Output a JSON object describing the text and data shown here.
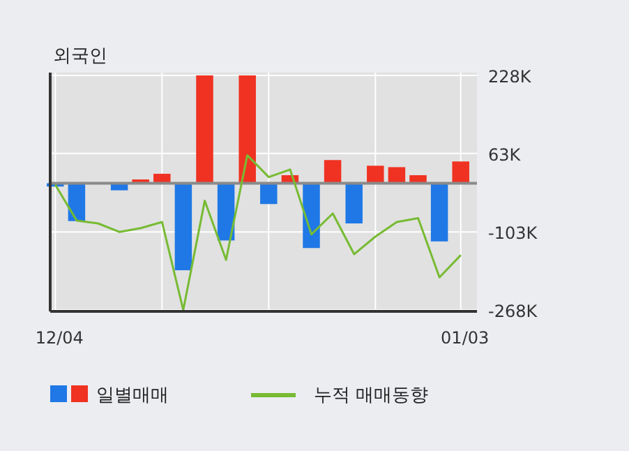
{
  "chart_data": {
    "type": "bar",
    "title": "외국인",
    "categories": [
      "12/04",
      null,
      null,
      null,
      null,
      null,
      null,
      null,
      null,
      null,
      null,
      null,
      null,
      null,
      null,
      null,
      null,
      null,
      null,
      "01/03"
    ],
    "series": [
      {
        "name": "일별매매",
        "colors": [
          "#1f78e6",
          "#1f78e6",
          "#1f78e6",
          "#1f78e6",
          "#f03222",
          "#f03222",
          "#1f78e6",
          "#f03222",
          "#1f78e6",
          "#f03222",
          "#1f78e6",
          "#f03222",
          "#1f78e6",
          "#f03222",
          "#1f78e6",
          "#f03222",
          "#f03222",
          "#f03222",
          "#1f78e6",
          "#f03222"
        ],
        "values": [
          -7000,
          -80000,
          0,
          -15000,
          8000,
          20000,
          -184000,
          228000,
          -121000,
          228000,
          -44000,
          17000,
          -137000,
          49000,
          -85000,
          37000,
          34000,
          17000,
          -123000,
          46000
        ]
      },
      {
        "name": "누적 매매동향",
        "type": "line",
        "color": "#77bb33",
        "values": [
          -3000,
          -79000,
          -85000,
          -103000,
          -95000,
          -82000,
          -268000,
          -37000,
          -162000,
          59000,
          13000,
          29000,
          -108000,
          -64000,
          -150000,
          -113000,
          -82000,
          -74000,
          -199000,
          -152000
        ]
      }
    ],
    "ylim": [
      -268000,
      228000
    ],
    "yticks": [
      {
        "value": 228000,
        "label": "228K"
      },
      {
        "value": 63000,
        "label": "63K"
      },
      {
        "value": -103000,
        "label": "-103K"
      },
      {
        "value": -268000,
        "label": "-268K"
      }
    ],
    "ref_lines": [
      {
        "axis": "y",
        "value": 0,
        "color": "#8a8a8a"
      }
    ],
    "grid": true,
    "legend": "bottom"
  }
}
